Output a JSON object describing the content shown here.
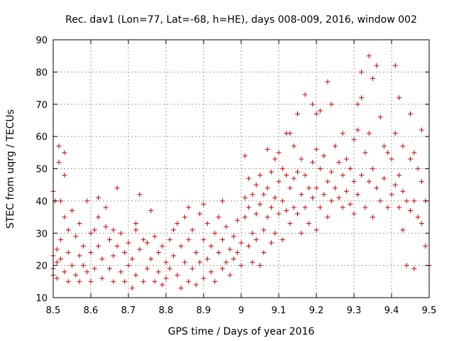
{
  "chart_data": {
    "type": "scatter",
    "title": "Rec. dav1 (Lon=77, Lat=-68, h=HE), days 008-009, 2016, window 002",
    "xlabel": "GPS time / Days of year 2016",
    "ylabel": "STEC from uqrg / TECUs",
    "xlim": [
      8.5,
      9.5
    ],
    "ylim": [
      10,
      90
    ],
    "x_ticks": [
      8.5,
      8.6,
      8.7,
      8.8,
      8.9,
      9.0,
      9.1,
      9.2,
      9.3,
      9.4,
      9.5
    ],
    "x_tick_labels": [
      "8.5",
      "8.6",
      "8.7",
      "8.8",
      "8.9",
      "9",
      "9.1",
      "9.2",
      "9.3",
      "9.4",
      "9.5"
    ],
    "y_ticks": [
      10,
      20,
      30,
      40,
      50,
      60,
      70,
      80,
      90
    ],
    "y_tick_labels": [
      "10",
      "20",
      "30",
      "40",
      "50",
      "60",
      "70",
      "80",
      "90"
    ],
    "grid": true,
    "marker": "+",
    "color": "#cc0000",
    "series": [
      {
        "name": "STEC",
        "points": [
          [
            8.5,
            23
          ],
          [
            8.5,
            19
          ],
          [
            8.5,
            17
          ],
          [
            8.5,
            43
          ],
          [
            8.505,
            40
          ],
          [
            8.51,
            25
          ],
          [
            8.51,
            21
          ],
          [
            8.51,
            16
          ],
          [
            8.515,
            57
          ],
          [
            8.515,
            52
          ],
          [
            8.52,
            40
          ],
          [
            8.52,
            28
          ],
          [
            8.52,
            22
          ],
          [
            8.53,
            55
          ],
          [
            8.53,
            48
          ],
          [
            8.53,
            35
          ],
          [
            8.53,
            18
          ],
          [
            8.54,
            31
          ],
          [
            8.54,
            24
          ],
          [
            8.54,
            15
          ],
          [
            8.55,
            37
          ],
          [
            8.55,
            20
          ],
          [
            8.56,
            29
          ],
          [
            8.56,
            17
          ],
          [
            8.57,
            33
          ],
          [
            8.57,
            23
          ],
          [
            8.57,
            15
          ],
          [
            8.58,
            26
          ],
          [
            8.58,
            20
          ],
          [
            8.59,
            40
          ],
          [
            8.59,
            18
          ],
          [
            8.6,
            30
          ],
          [
            8.6,
            24
          ],
          [
            8.6,
            15
          ],
          [
            8.61,
            31
          ],
          [
            8.61,
            19
          ],
          [
            8.62,
            41
          ],
          [
            8.62,
            35
          ],
          [
            8.62,
            26
          ],
          [
            8.63,
            22
          ],
          [
            8.63,
            16
          ],
          [
            8.64,
            38
          ],
          [
            8.64,
            32
          ],
          [
            8.65,
            28
          ],
          [
            8.65,
            19
          ],
          [
            8.66,
            31
          ],
          [
            8.66,
            23
          ],
          [
            8.66,
            15
          ],
          [
            8.67,
            44
          ],
          [
            8.67,
            26
          ],
          [
            8.68,
            30
          ],
          [
            8.68,
            18
          ],
          [
            8.69,
            24
          ],
          [
            8.69,
            15
          ],
          [
            8.7,
            27
          ],
          [
            8.7,
            20
          ],
          [
            8.71,
            22
          ],
          [
            8.71,
            13
          ],
          [
            8.72,
            33
          ],
          [
            8.72,
            31
          ],
          [
            8.72,
            17
          ],
          [
            8.73,
            42
          ],
          [
            8.73,
            25
          ],
          [
            8.74,
            28
          ],
          [
            8.74,
            15
          ],
          [
            8.75,
            27
          ],
          [
            8.75,
            19
          ],
          [
            8.76,
            37
          ],
          [
            8.76,
            22
          ],
          [
            8.77,
            29
          ],
          [
            8.77,
            15
          ],
          [
            8.78,
            24
          ],
          [
            8.78,
            18
          ],
          [
            8.79,
            26
          ],
          [
            8.79,
            14
          ],
          [
            8.8,
            21
          ],
          [
            8.8,
            16
          ],
          [
            8.81,
            28
          ],
          [
            8.81,
            19
          ],
          [
            8.82,
            31
          ],
          [
            8.82,
            23
          ],
          [
            8.83,
            33
          ],
          [
            8.83,
            17
          ],
          [
            8.84,
            26
          ],
          [
            8.84,
            13
          ],
          [
            8.85,
            35
          ],
          [
            8.85,
            21
          ],
          [
            8.86,
            38
          ],
          [
            8.86,
            28
          ],
          [
            8.86,
            15
          ],
          [
            8.87,
            31
          ],
          [
            8.87,
            19
          ],
          [
            8.88,
            24
          ],
          [
            8.88,
            14
          ],
          [
            8.89,
            36
          ],
          [
            8.89,
            21
          ],
          [
            8.9,
            39
          ],
          [
            8.9,
            28
          ],
          [
            8.9,
            16
          ],
          [
            8.91,
            33
          ],
          [
            8.91,
            22
          ],
          [
            8.92,
            26
          ],
          [
            8.92,
            18
          ],
          [
            8.93,
            30
          ],
          [
            8.93,
            15
          ],
          [
            8.94,
            35
          ],
          [
            8.94,
            24
          ],
          [
            8.95,
            40
          ],
          [
            8.95,
            28
          ],
          [
            8.95,
            19
          ],
          [
            8.96,
            32
          ],
          [
            8.96,
            21
          ],
          [
            8.97,
            25
          ],
          [
            8.97,
            17
          ],
          [
            8.98,
            29
          ],
          [
            8.98,
            22
          ],
          [
            8.99,
            34
          ],
          [
            8.99,
            24
          ],
          [
            9.0,
            27
          ],
          [
            9.0,
            20
          ],
          [
            9.01,
            54
          ],
          [
            9.01,
            41
          ],
          [
            9.01,
            35
          ],
          [
            9.02,
            47
          ],
          [
            9.02,
            38
          ],
          [
            9.02,
            26
          ],
          [
            9.03,
            42
          ],
          [
            9.03,
            30
          ],
          [
            9.03,
            21
          ],
          [
            9.04,
            45
          ],
          [
            9.04,
            36
          ],
          [
            9.04,
            28
          ],
          [
            9.05,
            48
          ],
          [
            9.05,
            39
          ],
          [
            9.05,
            20
          ],
          [
            9.06,
            42
          ],
          [
            9.06,
            31
          ],
          [
            9.06,
            24
          ],
          [
            9.07,
            56
          ],
          [
            9.07,
            44
          ],
          [
            9.07,
            35
          ],
          [
            9.08,
            49
          ],
          [
            9.08,
            38
          ],
          [
            9.08,
            27
          ],
          [
            9.09,
            53
          ],
          [
            9.09,
            41
          ],
          [
            9.09,
            30
          ],
          [
            9.1,
            55
          ],
          [
            9.1,
            46
          ],
          [
            9.1,
            36
          ],
          [
            9.11,
            50
          ],
          [
            9.11,
            40
          ],
          [
            9.11,
            28
          ],
          [
            9.12,
            61
          ],
          [
            9.12,
            48
          ],
          [
            9.12,
            37
          ],
          [
            9.13,
            61
          ],
          [
            9.13,
            44
          ],
          [
            9.13,
            33
          ],
          [
            9.14,
            57
          ],
          [
            9.14,
            47
          ],
          [
            9.14,
            38
          ],
          [
            9.15,
            67
          ],
          [
            9.15,
            49
          ],
          [
            9.15,
            36
          ],
          [
            9.16,
            53
          ],
          [
            9.16,
            42
          ],
          [
            9.16,
            30
          ],
          [
            9.17,
            73
          ],
          [
            9.17,
            48
          ],
          [
            9.17,
            38
          ],
          [
            9.18,
            44
          ],
          [
            9.18,
            33
          ],
          [
            9.19,
            70
          ],
          [
            9.19,
            52
          ],
          [
            9.19,
            41
          ],
          [
            9.2,
            67
          ],
          [
            9.2,
            56
          ],
          [
            9.2,
            44
          ],
          [
            9.2,
            31
          ],
          [
            9.21,
            68
          ],
          [
            9.21,
            50
          ],
          [
            9.21,
            38
          ],
          [
            9.22,
            54
          ],
          [
            9.22,
            42
          ],
          [
            9.23,
            77
          ],
          [
            9.23,
            46
          ],
          [
            9.23,
            35
          ],
          [
            9.24,
            70
          ],
          [
            9.24,
            49
          ],
          [
            9.24,
            40
          ],
          [
            9.25,
            57
          ],
          [
            9.25,
            44
          ],
          [
            9.26,
            52
          ],
          [
            9.26,
            41
          ],
          [
            9.27,
            61
          ],
          [
            9.27,
            48
          ],
          [
            9.27,
            38
          ],
          [
            9.28,
            53
          ],
          [
            9.28,
            43
          ],
          [
            9.29,
            50
          ],
          [
            9.29,
            39
          ],
          [
            9.3,
            59
          ],
          [
            9.3,
            46
          ],
          [
            9.3,
            36
          ],
          [
            9.31,
            70
          ],
          [
            9.31,
            62
          ],
          [
            9.31,
            42
          ],
          [
            9.32,
            72
          ],
          [
            9.32,
            80
          ],
          [
            9.32,
            48
          ],
          [
            9.33,
            55
          ],
          [
            9.33,
            38
          ],
          [
            9.34,
            85
          ],
          [
            9.34,
            61
          ],
          [
            9.34,
            46
          ],
          [
            9.35,
            78
          ],
          [
            9.35,
            50
          ],
          [
            9.35,
            35
          ],
          [
            9.36,
            82
          ],
          [
            9.36,
            44
          ],
          [
            9.37,
            66
          ],
          [
            9.37,
            40
          ],
          [
            9.38,
            57
          ],
          [
            9.38,
            47
          ],
          [
            9.39,
            55
          ],
          [
            9.39,
            38
          ],
          [
            9.4,
            53
          ],
          [
            9.4,
            42
          ],
          [
            9.41,
            82
          ],
          [
            9.41,
            61
          ],
          [
            9.41,
            45
          ],
          [
            9.42,
            72
          ],
          [
            9.42,
            48
          ],
          [
            9.42,
            38
          ],
          [
            9.43,
            57
          ],
          [
            9.43,
            43
          ],
          [
            9.43,
            31
          ],
          [
            9.44,
            40
          ],
          [
            9.44,
            20
          ],
          [
            9.45,
            67
          ],
          [
            9.45,
            53
          ],
          [
            9.45,
            37
          ],
          [
            9.46,
            55
          ],
          [
            9.46,
            40
          ],
          [
            9.46,
            19
          ],
          [
            9.47,
            50
          ],
          [
            9.47,
            35
          ],
          [
            9.48,
            62
          ],
          [
            9.48,
            46
          ],
          [
            9.48,
            33
          ],
          [
            9.49,
            40
          ],
          [
            9.49,
            26
          ],
          [
            9.5,
            20
          ]
        ]
      }
    ]
  }
}
